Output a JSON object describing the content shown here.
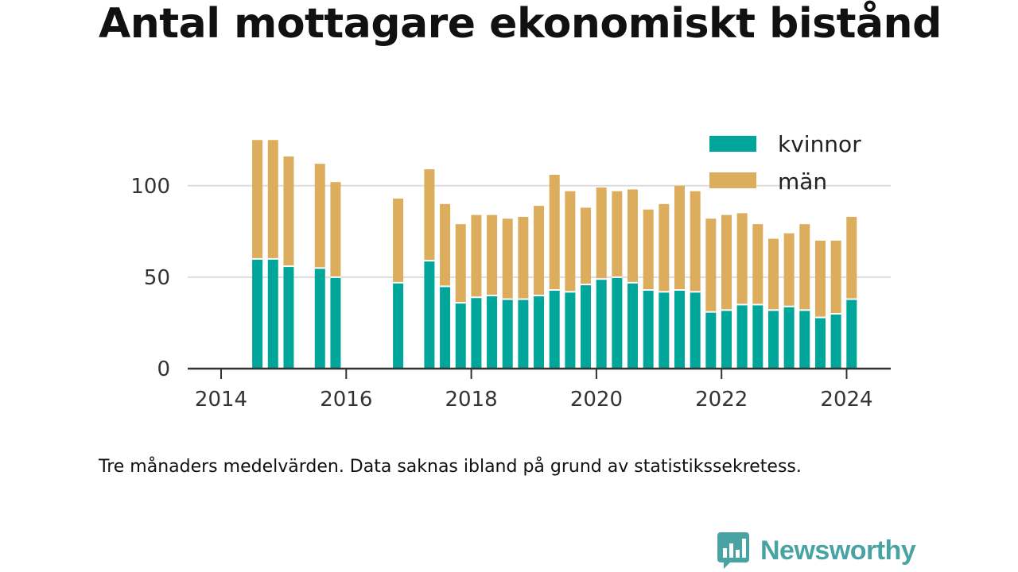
{
  "title": "Antal mottagare ekonomiskt bistånd",
  "footnote": "Tre månaders medelvärden. Data saknas ibland på grund av statistikssekretess.",
  "brand": {
    "name": "Newsworthy",
    "icon": "bar-chart-speech-bubble-icon"
  },
  "colors": {
    "kvinnor": "#00a699",
    "man": "#dbad5c",
    "grid": "#dddddd",
    "axis": "#333333"
  },
  "chart_data": {
    "type": "bar",
    "stacked": true,
    "title": "Antal mottagare ekonomiskt bistånd",
    "xlabel": "",
    "ylabel": "",
    "ylim": [
      0,
      125
    ],
    "xlim": [
      2013.6,
      2024.6
    ],
    "y_ticks": [
      "0",
      "50",
      "100"
    ],
    "x_ticks": [
      "2014",
      "2016",
      "2018",
      "2020",
      "2022",
      "2024"
    ],
    "grid": true,
    "legend_position": "top-right",
    "x": [
      2014.58,
      2014.83,
      2015.08,
      2015.58,
      2015.83,
      2016.83,
      2017.33,
      2017.58,
      2017.83,
      2018.08,
      2018.33,
      2018.58,
      2018.83,
      2019.08,
      2019.33,
      2019.58,
      2019.83,
      2020.08,
      2020.33,
      2020.58,
      2020.83,
      2021.08,
      2021.33,
      2021.58,
      2021.83,
      2022.08,
      2022.33,
      2022.58,
      2022.83,
      2023.08,
      2023.33,
      2023.58,
      2023.83,
      2024.08
    ],
    "series": [
      {
        "name": "kvinnor",
        "values": [
          60,
          60,
          56,
          55,
          50,
          47,
          59,
          45,
          36,
          39,
          40,
          38,
          38,
          40,
          43,
          42,
          46,
          49,
          50,
          47,
          43,
          42,
          43,
          42,
          31,
          32,
          35,
          35,
          32,
          34,
          32,
          28,
          30,
          38
        ]
      },
      {
        "name": "män",
        "values": [
          65,
          65,
          60,
          57,
          52,
          46,
          50,
          45,
          43,
          45,
          44,
          44,
          45,
          49,
          63,
          55,
          42,
          50,
          47,
          51,
          44,
          48,
          57,
          55,
          51,
          52,
          50,
          44,
          39,
          40,
          47,
          42,
          40,
          45
        ]
      }
    ]
  }
}
